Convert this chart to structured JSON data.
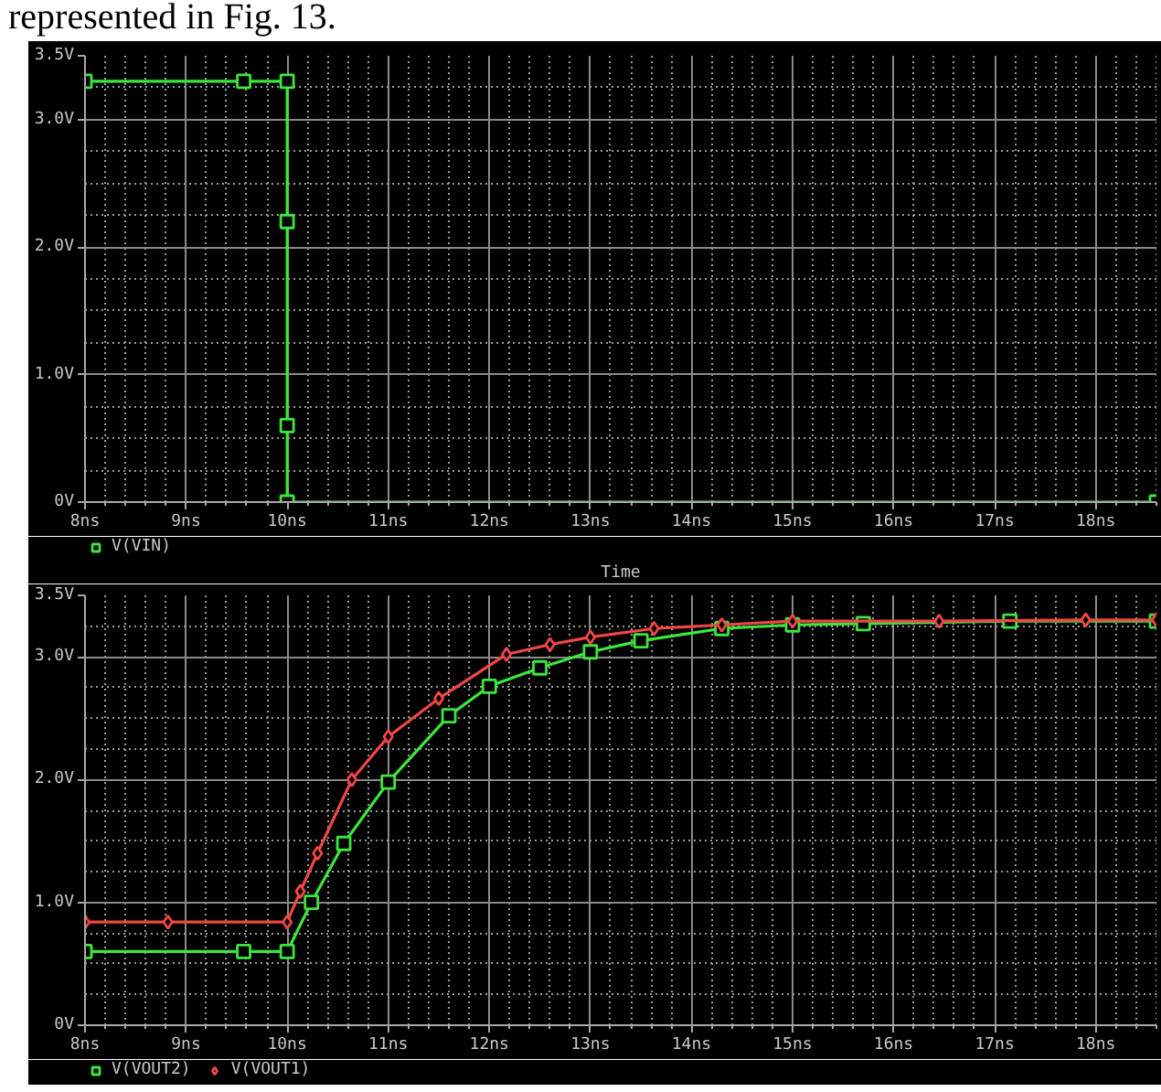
{
  "chart_data": [
    {
      "type": "line",
      "annotations": [
        "represented in Fig. 13."
      ],
      "xlabel": "Time",
      "x": [
        8,
        9.57,
        10,
        10,
        10,
        10,
        18.6
      ],
      "series": [
        {
          "name": "V(VIN)",
          "color": "#3ce63c",
          "marker": "square",
          "values": [
            3.3,
            3.3,
            3.3,
            2.2,
            0.6,
            0,
            0
          ]
        }
      ],
      "xlim": [
        8,
        18.6
      ],
      "xticks": [
        {
          "value": 8,
          "label": "8ns"
        },
        {
          "value": 9,
          "label": "9ns"
        },
        {
          "value": 10,
          "label": "10ns"
        },
        {
          "value": 11,
          "label": "11ns"
        },
        {
          "value": 12,
          "label": "12ns"
        },
        {
          "value": 13,
          "label": "13ns"
        },
        {
          "value": 14,
          "label": "14ns"
        },
        {
          "value": 15,
          "label": "15ns"
        },
        {
          "value": 16,
          "label": "16ns"
        },
        {
          "value": 17,
          "label": "17ns"
        },
        {
          "value": 18,
          "label": "18ns"
        }
      ],
      "ylim": [
        0,
        3.5
      ],
      "yticks": [
        {
          "value": 0,
          "label": "0V"
        },
        {
          "value": 1,
          "label": "1.0V"
        },
        {
          "value": 2,
          "label": "2.0V"
        },
        {
          "value": 3,
          "label": "3.0V"
        },
        {
          "value": 3.5,
          "label": "3.5V"
        }
      ],
      "grid": true,
      "legend": "bottom left"
    },
    {
      "type": "line",
      "series": [
        {
          "name": "V(VOUT2)",
          "color": "#3ce63c",
          "marker": "square",
          "x": [
            8,
            9.57,
            10,
            10.24,
            10.56,
            11,
            11.6,
            12,
            12.5,
            13,
            13.5,
            14.3,
            15,
            15.7,
            17.15,
            18.6
          ],
          "values": [
            0.6,
            0.6,
            0.6,
            1.0,
            1.48,
            1.98,
            2.52,
            2.76,
            2.91,
            3.04,
            3.13,
            3.23,
            3.26,
            3.27,
            3.29,
            3.29
          ]
        },
        {
          "name": "V(VOUT1)",
          "color": "#f04646",
          "marker": "diamond",
          "x": [
            8,
            8.82,
            10,
            10.13,
            10.3,
            10.64,
            11,
            11.5,
            12.17,
            12.6,
            13,
            13.63,
            14.3,
            15,
            16.45,
            17.9,
            18.6
          ],
          "values": [
            0.84,
            0.84,
            0.84,
            1.09,
            1.4,
            2.0,
            2.35,
            2.66,
            3.02,
            3.1,
            3.16,
            3.23,
            3.26,
            3.29,
            3.29,
            3.3,
            3.3
          ]
        }
      ],
      "xlim": [
        8,
        18.6
      ],
      "xticks": [
        {
          "value": 8,
          "label": "8ns"
        },
        {
          "value": 9,
          "label": "9ns"
        },
        {
          "value": 10,
          "label": "10ns"
        },
        {
          "value": 11,
          "label": "11ns"
        },
        {
          "value": 12,
          "label": "12ns"
        },
        {
          "value": 13,
          "label": "13ns"
        },
        {
          "value": 14,
          "label": "14ns"
        },
        {
          "value": 15,
          "label": "15ns"
        },
        {
          "value": 16,
          "label": "16ns"
        },
        {
          "value": 17,
          "label": "17ns"
        },
        {
          "value": 18,
          "label": "18ns"
        }
      ],
      "ylim": [
        0,
        3.5
      ],
      "yticks": [
        {
          "value": 0,
          "label": "0V"
        },
        {
          "value": 1,
          "label": "1.0V"
        },
        {
          "value": 2,
          "label": "2.0V"
        },
        {
          "value": 3,
          "label": "3.0V"
        },
        {
          "value": 3.5,
          "label": "3.5V"
        }
      ],
      "grid": true,
      "legend": "bottom left"
    }
  ]
}
